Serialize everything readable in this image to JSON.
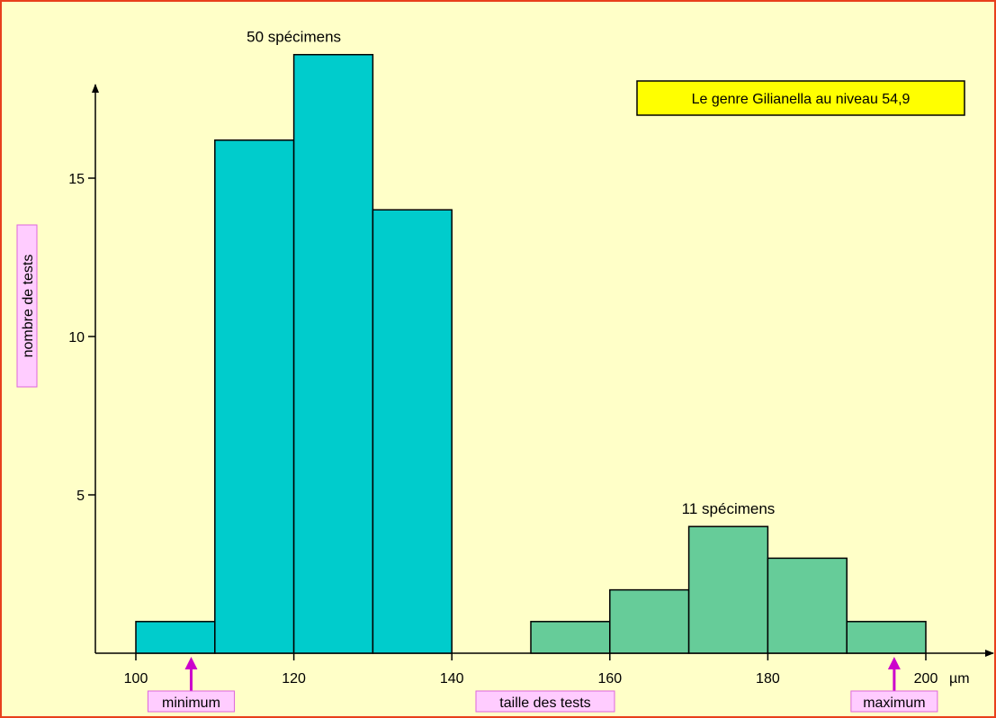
{
  "chart_data": {
    "type": "bar",
    "title": "Le genre Gilianella au niveau 54,9",
    "xlabel": "taille des tests",
    "ylabel": "nombre de tests",
    "x_unit": "µm",
    "xlim": [
      95,
      205
    ],
    "ylim": [
      0,
      18.5
    ],
    "x_ticks": [
      100,
      120,
      140,
      160,
      180,
      200
    ],
    "y_ticks": [
      5,
      10,
      15
    ],
    "grid": false,
    "series": [
      {
        "count_label": "50 spécimens",
        "color": "#00cccc",
        "bins": [
          {
            "from": 100,
            "to": 110,
            "value": 1
          },
          {
            "from": 110,
            "to": 120,
            "value": 16.2
          },
          {
            "from": 120,
            "to": 130,
            "value": 18.9
          },
          {
            "from": 130,
            "to": 140,
            "value": 14
          }
        ]
      },
      {
        "count_label": "11 spécimens",
        "color": "#66cc99",
        "bins": [
          {
            "from": 150,
            "to": 160,
            "value": 1
          },
          {
            "from": 160,
            "to": 170,
            "value": 2
          },
          {
            "from": 170,
            "to": 180,
            "value": 4
          },
          {
            "from": 180,
            "to": 190,
            "value": 3
          },
          {
            "from": 190,
            "to": 200,
            "value": 1
          }
        ]
      }
    ],
    "markers": [
      {
        "label": "minimum",
        "x": 107
      },
      {
        "label": "maximum",
        "x": 196
      }
    ],
    "colors": {
      "label_box_fill": "#ffccff",
      "label_box_stroke": "#dd66dd",
      "marker_arrow": "#cc00cc",
      "title_box_fill": "#ffff00"
    }
  }
}
